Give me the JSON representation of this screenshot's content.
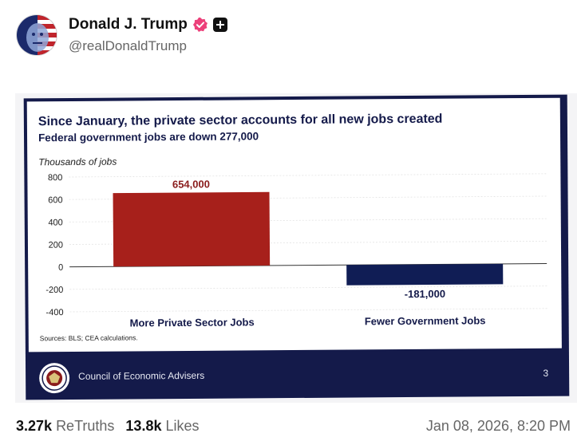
{
  "post": {
    "display_name": "Donald J. Trump",
    "handle": "@realDonaldTrump",
    "retruths_count": "3.27k",
    "retruths_label": "ReTruths",
    "likes_count": "13.8k",
    "likes_label": "Likes",
    "timestamp": "Jan 08, 2026, 8:20 PM"
  },
  "colors": {
    "verified": "#ec407a",
    "positive_bar": "#a7201b",
    "negative_bar": "#101d55",
    "slide_footer": "#141a4a"
  },
  "icons": {
    "verified": "verified-badge-icon",
    "plus": "plus-badge-icon",
    "seal": "seal-icon"
  },
  "slide": {
    "footer_org": "Council of Economic Advisers",
    "page_number": "3",
    "sources": "Sources: BLS; CEA calculations."
  },
  "chart_data": {
    "type": "bar",
    "title": "Since January, the private sector accounts for all new jobs created",
    "subtitle": "Federal government jobs are down 277,000",
    "ylabel": "Thousands of jobs",
    "xlabel": "",
    "categories": [
      "More Private Sector Jobs",
      "Fewer Government Jobs"
    ],
    "values": [
      654,
      -181
    ],
    "value_labels": [
      "654,000",
      "-181,000"
    ],
    "ylim": [
      -400,
      800
    ],
    "yticks": [
      "800",
      "600",
      "400",
      "200",
      "0",
      "-200",
      "-400"
    ],
    "grid": true
  }
}
